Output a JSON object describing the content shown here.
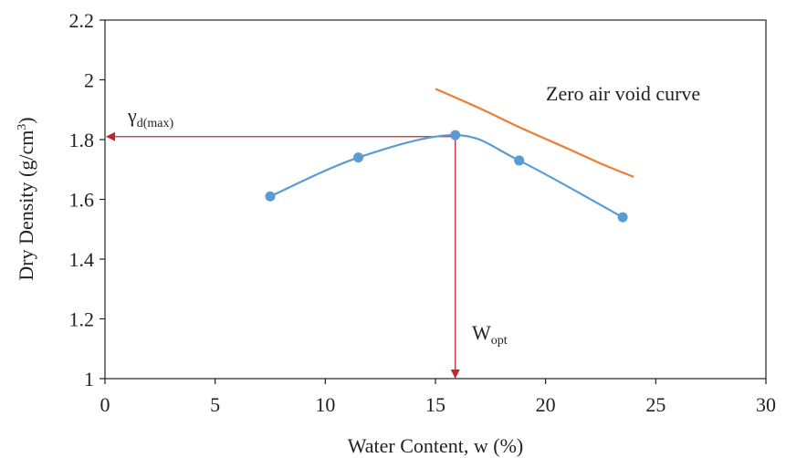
{
  "chart_data": {
    "type": "scatter",
    "title": "",
    "xlabel": "Water Content, w (%)",
    "ylabel": "Dry Density (g/cm³)",
    "ylabel_base": "Dry Density (g/cm",
    "ylabel_sup": "3",
    "ylabel_tail": ")",
    "xlim": [
      0,
      30
    ],
    "ylim": [
      1,
      2.2
    ],
    "xticks": [
      0,
      5,
      10,
      15,
      20,
      25,
      30
    ],
    "xtick_labels": [
      "0",
      "5",
      "10",
      "15",
      "20",
      "25",
      "30"
    ],
    "yticks": [
      1,
      1.2,
      1.4,
      1.6,
      1.8,
      2,
      2.2
    ],
    "ytick_labels": [
      "1",
      "1.2",
      "1.4",
      "1.6",
      "1.8",
      "2",
      "2.2"
    ],
    "grid": false,
    "series": [
      {
        "kind": "compaction-points",
        "color": "#5b9bd5",
        "points": [
          {
            "x": 7.5,
            "y": 1.61
          },
          {
            "x": 11.5,
            "y": 1.74
          },
          {
            "x": 15.9,
            "y": 1.815
          },
          {
            "x": 18.8,
            "y": 1.73
          },
          {
            "x": 23.5,
            "y": 1.54
          }
        ]
      },
      {
        "kind": "zero-air-void-curve",
        "color": "#ed7d31",
        "points": [
          {
            "x": 15.0,
            "y": 1.97
          },
          {
            "x": 17.0,
            "y": 1.905
          },
          {
            "x": 19.0,
            "y": 1.835
          },
          {
            "x": 21.0,
            "y": 1.77
          },
          {
            "x": 22.5,
            "y": 1.72
          },
          {
            "x": 24.0,
            "y": 1.675
          }
        ]
      }
    ],
    "annotations": {
      "zav_label": "Zero air void curve",
      "gamma_base": "γ",
      "gamma_sub": "d(max)",
      "wopt_base": "W",
      "wopt_sub": "opt",
      "guide_color": "#c0272d",
      "optimum": {
        "x": 15.9,
        "y": 1.81
      }
    }
  }
}
